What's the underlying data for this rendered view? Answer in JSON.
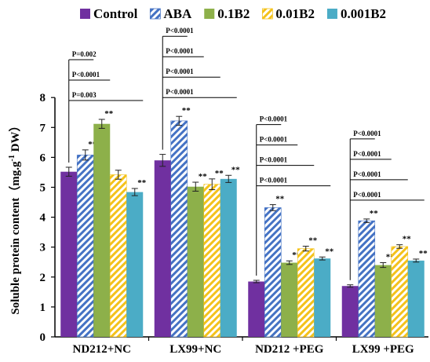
{
  "chart_data": {
    "type": "bar",
    "ylabel_main": "Soluble protein content（mg.g",
    "ylabel_sup": "-1",
    "ylabel_tail": " DW）",
    "ylim": [
      0,
      8
    ],
    "yticks": [
      "0",
      "1",
      "2",
      "3",
      "4",
      "5",
      "6",
      "7",
      "8"
    ],
    "legend_position": "top",
    "categories": [
      "ND212+NC",
      "LX99+NC",
      "ND212 +PEG",
      "LX99 +PEG"
    ],
    "series": [
      {
        "name": "Control",
        "color": "#7030a0",
        "pattern": "solid",
        "values": [
          5.52,
          5.9,
          1.85,
          1.7
        ],
        "errors": [
          0.15,
          0.2,
          0.04,
          0.04
        ],
        "sig": [
          "",
          "",
          "",
          ""
        ]
      },
      {
        "name": "ABA",
        "color": "#4472c4",
        "pattern": "diagonal-stripes",
        "values": [
          6.08,
          7.22,
          4.32,
          3.88
        ],
        "errors": [
          0.17,
          0.15,
          0.1,
          0.06
        ],
        "sig": [
          "**",
          "**",
          "**",
          "**"
        ]
      },
      {
        "name": "0.1B2",
        "color": "#8db04a",
        "pattern": "solid",
        "values": [
          7.12,
          5.02,
          2.48,
          2.4
        ],
        "errors": [
          0.15,
          0.15,
          0.06,
          0.08
        ],
        "sig": [
          "**",
          "**",
          "**",
          "**"
        ]
      },
      {
        "name": "0.01B2",
        "color": "#f4c21b",
        "pattern": "diagonal-stripes",
        "values": [
          5.42,
          5.1,
          2.95,
          3.02
        ],
        "errors": [
          0.15,
          0.18,
          0.08,
          0.06
        ],
        "sig": [
          "",
          "**",
          "**",
          "**"
        ]
      },
      {
        "name": "0.001B2",
        "color": "#4bacc6",
        "pattern": "solid",
        "values": [
          4.84,
          5.28,
          2.62,
          2.55
        ],
        "errors": [
          0.12,
          0.12,
          0.05,
          0.05
        ],
        "sig": [
          "**",
          "**",
          "**",
          "**"
        ]
      }
    ],
    "pvalue_annotations": [
      {
        "group": 0,
        "labels": [
          "P=0.002",
          "P<0.0001",
          "P=0.003"
        ],
        "targets": [
          1,
          2,
          4
        ]
      },
      {
        "group": 1,
        "labels": [
          "P<0.0001",
          "P<0.0001",
          "P<0.0001",
          "P<0.0001"
        ],
        "targets": [
          1,
          2,
          3,
          4
        ]
      },
      {
        "group": 2,
        "labels": [
          "P<0.0001",
          "P<0.0001",
          "P<0.0001",
          "P<0.0001"
        ],
        "targets": [
          1,
          2,
          3,
          4
        ]
      },
      {
        "group": 3,
        "labels": [
          "P<0.0001",
          "P<0.0001",
          "P<0.0001",
          "P<0.0001"
        ],
        "targets": [
          1,
          2,
          3,
          4
        ]
      }
    ]
  }
}
